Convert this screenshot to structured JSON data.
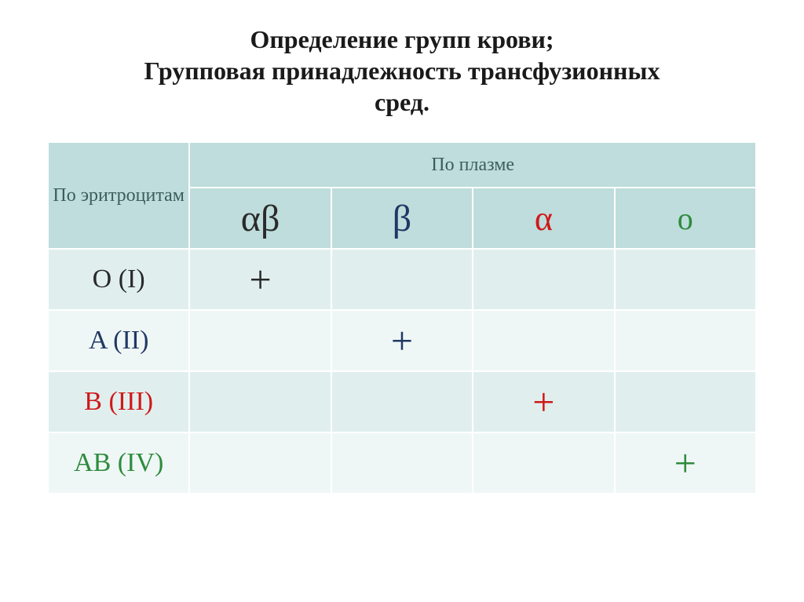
{
  "title": {
    "line1": "Определение групп крови;",
    "line2": "Групповая принадлежность трансфузионных",
    "line3": "сред.",
    "fontsize": 32,
    "color": "#1a1a1a"
  },
  "table": {
    "header_bg": "#bedddc",
    "header_text_color": "#3c5e5a",
    "row_even_bg": "#e0efee",
    "row_odd_bg": "#eff7f6",
    "row_label_header": "По эритроцитам",
    "col_group_header": "По плазме",
    "header_fontsize": 24,
    "columns": [
      {
        "label": "αβ",
        "color": "#2a2a2a",
        "fontsize": 48
      },
      {
        "label": "β",
        "color": "#203864",
        "fontsize": 48
      },
      {
        "label": "α",
        "color": "#d01818",
        "fontsize": 44
      },
      {
        "label": "o",
        "color": "#2e8b3d",
        "fontsize": 40
      }
    ],
    "rows": [
      {
        "label": "O (I)",
        "color": "#2a2a2a",
        "fontsize": 34,
        "bg": "row-even"
      },
      {
        "label": "A (II)",
        "color": "#203864",
        "fontsize": 34,
        "bg": "row-odd"
      },
      {
        "label": "B (III)",
        "color": "#d01818",
        "fontsize": 34,
        "bg": "row-even"
      },
      {
        "label": "AB (IV)",
        "color": "#2e8b3d",
        "fontsize": 34,
        "bg": "row-odd"
      }
    ],
    "cells": [
      [
        "+",
        "",
        "",
        ""
      ],
      [
        "",
        "+",
        "",
        ""
      ],
      [
        "",
        "",
        "+",
        ""
      ],
      [
        "",
        "",
        "",
        "+"
      ]
    ],
    "plus_colors": [
      [
        "#2a2a2a",
        "",
        "",
        ""
      ],
      [
        "",
        "#203864",
        "",
        ""
      ],
      [
        "",
        "",
        "#d01818",
        ""
      ],
      [
        "",
        "",
        "",
        "#2e8b3d"
      ]
    ],
    "plus_fontsize": 50
  }
}
